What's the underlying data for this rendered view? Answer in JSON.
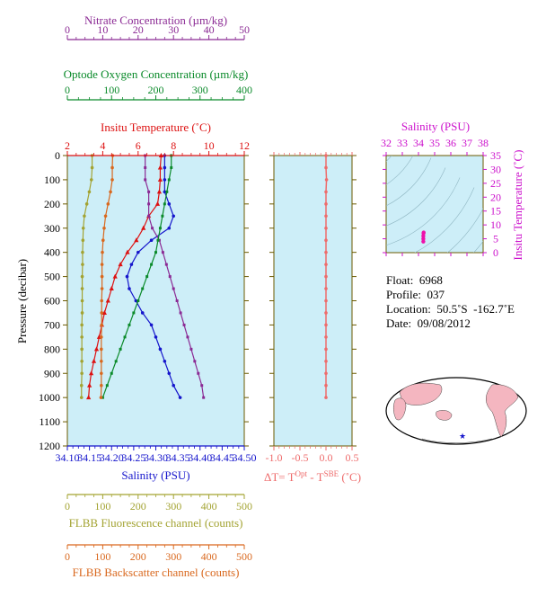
{
  "colors": {
    "nitrate": "#8b2a94",
    "oxygen": "#0a8a2a",
    "temperature": "#dd1111",
    "salinity": "#1515cc",
    "fluorescence": "#a3a332",
    "backscatter": "#d9681e",
    "dt": "#ee6b6b",
    "ts_label": "#cc11cc",
    "plot_bg": "#cdeef8",
    "axis": "#6b5a00"
  },
  "nitrate_axis": {
    "label": "Nitrate Concentration (µm/kg)",
    "ticks": [
      "0",
      "10",
      "20",
      "30",
      "40",
      "50"
    ]
  },
  "oxygen_axis": {
    "label": "Optode Oxygen Concentration (µm/kg)",
    "ticks": [
      "0",
      "100",
      "200",
      "300",
      "400"
    ]
  },
  "temperature_axis": {
    "label": "Insitu Temperature (˚C)",
    "ticks": [
      "2",
      "4",
      "6",
      "8",
      "10",
      "12"
    ]
  },
  "pressure_axis": {
    "label": "Pressure (decibar)",
    "ticks": [
      "0",
      "100",
      "200",
      "300",
      "400",
      "500",
      "600",
      "700",
      "800",
      "900",
      "1000",
      "1100",
      "1200"
    ]
  },
  "salinity_axis": {
    "label": "Salinity (PSU)",
    "ticks": [
      "34.10",
      "34.15",
      "34.20",
      "34.25",
      "34.30",
      "34.35",
      "34.40",
      "34.45",
      "34.50"
    ]
  },
  "fluorescence_axis": {
    "label": "FLBB Fluorescence channel (counts)",
    "ticks": [
      "0",
      "100",
      "200",
      "300",
      "400",
      "500"
    ]
  },
  "backscatter_axis": {
    "label": "FLBB Backscatter channel (counts)",
    "ticks": [
      "0",
      "100",
      "200",
      "300",
      "400",
      "500"
    ]
  },
  "dt_axis": {
    "ticks": [
      "-1.0",
      "-0.5",
      "0.0",
      "0.5"
    ],
    "label_main": "ΔT= T",
    "label_sup1": "Opt",
    "label_mid": " - T",
    "label_sup2": "SBE",
    "label_end": " (˚C)"
  },
  "ts_diagram": {
    "top_label": "Salinity (PSU)",
    "top_ticks": [
      "32",
      "33",
      "34",
      "35",
      "36",
      "37",
      "38"
    ],
    "right_label": "Insitu Temperature (˚C)",
    "right_ticks": [
      "0",
      "5",
      "10",
      "15",
      "20",
      "25",
      "30",
      "35"
    ]
  },
  "float_info": {
    "float": "Float:  6968",
    "profile": "Profile:  037",
    "location": "Location:  50.5˚S  -162.7˚E",
    "date": "Date:  09/08/2012"
  },
  "chart_data": {
    "type": "line",
    "pressure": [
      0,
      50,
      100,
      150,
      200,
      250,
      300,
      350,
      400,
      450,
      500,
      550,
      600,
      650,
      700,
      750,
      800,
      850,
      900,
      950,
      1000
    ],
    "series": [
      {
        "name": "Insitu Temperature",
        "unit": "˚C",
        "values": [
          7.3,
          7.25,
          7.25,
          7.2,
          7.1,
          6.6,
          6.3,
          5.9,
          5.4,
          5.0,
          4.7,
          4.5,
          4.3,
          4.1,
          3.95,
          3.8,
          3.65,
          3.5,
          3.35,
          3.25,
          3.2
        ]
      },
      {
        "name": "Salinity",
        "unit": "PSU",
        "values": [
          34.32,
          34.32,
          34.32,
          34.32,
          34.33,
          34.34,
          34.33,
          34.29,
          34.26,
          34.245,
          34.235,
          34.24,
          34.255,
          34.27,
          34.29,
          34.3,
          34.31,
          34.32,
          34.33,
          34.34,
          34.355
        ]
      },
      {
        "name": "Nitrate",
        "unit": "µm/kg",
        "values": [
          22,
          22,
          22,
          23,
          23,
          23,
          24,
          26,
          27,
          28,
          29,
          30,
          31,
          32,
          33,
          34,
          35,
          36,
          37,
          38,
          38.5
        ]
      },
      {
        "name": "Optode Oxygen",
        "unit": "µm/kg",
        "values": [
          235,
          235,
          230,
          225,
          220,
          215,
          210,
          205,
          200,
          190,
          180,
          170,
          160,
          150,
          140,
          130,
          120,
          110,
          100,
          90,
          80
        ]
      },
      {
        "name": "FLBB Fluorescence",
        "unit": "counts",
        "values": [
          70,
          70,
          68,
          62,
          55,
          48,
          45,
          44,
          43,
          43,
          42,
          42,
          42,
          42,
          41,
          41,
          41,
          41,
          41,
          40,
          40
        ]
      },
      {
        "name": "FLBB Backscatter",
        "unit": "counts",
        "values": [
          128,
          127,
          127,
          122,
          115,
          108,
          104,
          101,
          99,
          98,
          98,
          98,
          97,
          97,
          97,
          96,
          96,
          96,
          96,
          96,
          95
        ]
      },
      {
        "name": "ΔT",
        "unit": "˚C",
        "values": [
          0.0,
          0.0,
          0.01,
          0.0,
          0.0,
          0.0,
          0.0,
          0.0,
          0.0,
          0.0,
          0.0,
          0.0,
          0.0,
          0.0,
          0.0,
          0.0,
          0.0,
          0.0,
          0.0,
          0.0,
          0.0
        ]
      }
    ],
    "ts_points": [
      [
        34.3,
        4.0
      ],
      [
        34.3,
        5.0
      ],
      [
        34.3,
        6.0
      ],
      [
        34.31,
        7.0
      ],
      [
        34.32,
        7.25
      ]
    ],
    "ylim": [
      0,
      1200
    ]
  }
}
